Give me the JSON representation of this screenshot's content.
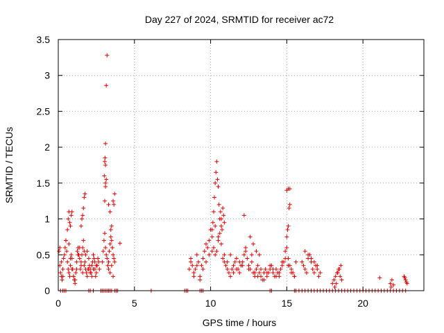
{
  "chart_data": {
    "type": "scatter",
    "title": "Day 227 of 2024, SRMTID for receiver ac72",
    "xlabel": "GPS time / hours",
    "ylabel": "SRMTID / TECUs",
    "xlim": [
      0,
      24
    ],
    "ylim": [
      0,
      3.5
    ],
    "xticks": [
      0,
      5,
      10,
      15,
      20
    ],
    "xtick_labels": [
      "0",
      "5",
      "10",
      "15",
      "20"
    ],
    "yticks": [
      0,
      0.5,
      1,
      1.5,
      2,
      2.5,
      3,
      3.5
    ],
    "ytick_labels": [
      "0",
      "0.5",
      "1",
      "1.5",
      "2",
      "2.5",
      "3",
      "3.5"
    ],
    "grid": true,
    "marker": "+",
    "color": "#e00000",
    "series": [
      {
        "x": [
          0.05,
          0.1,
          0.15,
          0.2,
          0.25,
          0.3,
          0.35,
          0.4,
          0.45,
          0.5,
          0.55,
          0.6,
          0.65,
          0.7,
          0.75,
          0.8,
          0.85,
          0.9,
          0.95,
          1.0,
          1.05,
          1.1,
          1.15,
          1.2,
          1.25,
          1.3,
          1.35,
          1.4,
          1.45,
          1.5,
          1.55,
          1.6,
          1.65,
          1.7,
          1.75,
          1.8,
          1.85,
          1.9,
          1.95,
          2.0,
          2.05,
          2.1,
          2.15,
          2.2,
          2.25,
          2.3,
          2.35,
          2.4,
          2.45,
          2.5,
          2.55,
          2.6,
          2.65,
          2.7,
          0.1,
          0.2,
          0.3,
          0.5,
          0.6,
          0.7,
          0.8,
          0.9,
          1.0,
          1.1,
          1.2,
          1.3,
          1.4,
          1.5,
          1.6,
          1.7,
          1.8,
          1.9,
          2.0,
          2.1,
          2.2,
          2.3,
          2.4,
          2.5,
          0.65,
          0.7,
          0.75,
          0.8,
          0.85,
          0.9,
          1.5,
          1.55,
          1.6,
          1.65,
          1.7,
          1.75,
          2.9,
          2.95,
          3.0,
          3.05,
          3.1,
          3.15,
          3.2,
          3.25,
          3.3,
          3.35,
          3.4,
          3.45,
          3.5,
          3.55,
          3.6,
          3.65,
          3.7,
          3.05,
          3.1,
          3.15,
          3.1,
          3.05,
          3.1,
          3.15,
          3.2,
          3.3,
          3.4,
          3.45,
          3.5,
          3.55,
          3.6,
          3.65,
          3.7,
          3.3,
          3.4,
          3.5,
          3.6,
          4.05,
          3.07,
          3.02,
          3.1
        ],
        "y": [
          0.55,
          0.35,
          0.25,
          0.2,
          0.15,
          0.3,
          0.45,
          0.5,
          0.6,
          0.7,
          0.55,
          0.4,
          0.3,
          0.25,
          0.2,
          0.35,
          0.5,
          0.45,
          0.3,
          0.2,
          0.15,
          0.1,
          0.25,
          0.4,
          0.55,
          0.6,
          0.5,
          0.45,
          0.3,
          0.35,
          0.5,
          0.6,
          0.7,
          0.55,
          0.4,
          0.3,
          0.25,
          0.2,
          0.3,
          0.45,
          0.35,
          0.3,
          0.25,
          0.35,
          0.4,
          0.5,
          0.45,
          0.3,
          0.2,
          0.25,
          0.35,
          0.45,
          0.4,
          0.3,
          0.6,
          0.4,
          0.2,
          0.7,
          0.85,
          0.65,
          0.45,
          0.3,
          0.2,
          0.15,
          0.3,
          0.5,
          0.6,
          0.4,
          0.25,
          0.35,
          0.5,
          0.55,
          0.3,
          0.25,
          0.2,
          0.3,
          0.4,
          0.35,
          1.0,
          1.1,
          0.95,
          0.9,
          1.05,
          1.1,
          0.9,
          1.0,
          1.05,
          1.15,
          1.3,
          1.35,
          0.4,
          0.55,
          0.7,
          0.8,
          0.6,
          0.5,
          0.45,
          0.35,
          0.4,
          0.55,
          0.65,
          0.75,
          0.9,
          0.6,
          0.5,
          0.45,
          0.4,
          1.25,
          1.45,
          1.55,
          1.75,
          1.8,
          2.05,
          2.86,
          3.28,
          1.2,
          1.1,
          0.85,
          0.7,
          0.6,
          1.25,
          1.2,
          1.35,
          0.3,
          0.25,
          0.35,
          0.2,
          0.66,
          1.85,
          1.6,
          1.5
        ]
      },
      {
        "x": [
          8.6,
          8.7,
          8.8,
          8.9,
          9.0,
          9.1,
          9.2,
          9.3,
          9.4,
          9.5,
          9.6,
          9.7,
          9.8,
          9.9,
          10.0,
          10.1,
          10.2,
          10.3,
          10.4,
          10.5,
          10.6,
          10.7,
          10.8,
          10.9,
          11.0,
          11.1,
          11.2,
          11.3,
          11.4,
          11.5,
          11.6,
          11.7,
          11.8,
          11.9,
          12.0,
          12.1,
          12.2,
          12.3,
          12.4,
          12.5,
          12.6,
          12.7,
          12.8,
          12.9,
          13.0,
          13.1,
          13.2,
          13.3,
          13.4,
          13.5,
          13.6,
          13.7,
          13.8,
          13.9,
          14.0,
          14.1,
          14.2,
          14.3,
          14.4,
          14.5,
          14.6,
          14.7,
          14.8,
          14.9,
          15.0,
          15.1,
          15.2,
          15.3,
          15.4,
          15.5,
          15.6,
          8.7,
          8.9,
          9.1,
          9.3,
          9.5,
          9.7,
          9.9,
          10.1,
          10.3,
          10.5,
          10.7,
          10.9,
          11.1,
          11.3,
          11.5,
          11.7,
          11.9,
          12.1,
          12.3,
          12.5,
          12.7,
          12.9,
          13.1,
          13.3,
          13.5,
          13.7,
          13.9,
          14.1,
          14.3,
          14.5,
          14.7,
          14.9,
          15.1,
          15.3,
          15.5,
          10.1,
          10.15,
          10.2,
          10.25,
          10.3,
          10.35,
          10.4,
          10.45,
          10.5,
          10.55,
          10.6,
          10.65,
          10.7,
          10.75,
          10.8,
          10.85,
          10.9,
          12.2,
          12.6,
          12.8,
          13.0,
          13.2,
          15.0,
          15.05,
          15.1,
          15.15,
          15.2,
          15.0,
          15.1,
          15.2
        ],
        "y": [
          0.3,
          0.4,
          0.35,
          0.25,
          0.3,
          0.5,
          0.4,
          0.2,
          0.35,
          0.45,
          0.55,
          0.4,
          0.6,
          0.7,
          0.85,
          0.75,
          0.6,
          0.5,
          0.55,
          0.7,
          0.8,
          0.65,
          0.45,
          0.4,
          0.35,
          0.3,
          0.25,
          0.2,
          0.3,
          0.35,
          0.4,
          0.45,
          0.3,
          0.25,
          0.35,
          0.4,
          0.5,
          0.55,
          0.45,
          0.35,
          0.3,
          0.4,
          0.25,
          0.2,
          0.3,
          0.35,
          0.25,
          0.2,
          0.15,
          0.25,
          0.3,
          0.2,
          0.25,
          0.3,
          0.35,
          0.25,
          0.2,
          0.3,
          0.25,
          0.2,
          0.3,
          0.35,
          0.4,
          0.55,
          0.6,
          0.45,
          0.35,
          0.3,
          0.25,
          0.2,
          0.4,
          0.45,
          0.2,
          0.35,
          0.15,
          0.3,
          0.65,
          0.5,
          0.55,
          0.9,
          0.75,
          1.0,
          0.5,
          0.4,
          0.5,
          0.25,
          0.3,
          0.4,
          0.35,
          0.6,
          0.3,
          0.5,
          0.25,
          0.2,
          0.3,
          0.15,
          0.25,
          0.35,
          0.3,
          0.2,
          0.25,
          0.4,
          0.45,
          0.35,
          0.25,
          0.2,
          0.85,
          0.95,
          1.1,
          1.3,
          1.5,
          1.65,
          1.8,
          1.55,
          1.45,
          1.2,
          1.0,
          1.1,
          0.9,
          0.85,
          1.15,
          1.05,
          0.95,
          1.05,
          0.75,
          0.65,
          0.55,
          0.5,
          0.75,
          0.85,
          0.9,
          1.15,
          1.2,
          1.4,
          1.42,
          1.42
        ]
      },
      {
        "x": [
          16.0,
          16.1,
          16.2,
          16.3,
          16.4,
          16.5,
          16.6,
          16.7,
          16.8,
          16.9,
          17.0,
          17.1,
          17.2,
          16.2,
          16.4,
          16.6,
          16.8,
          17.0,
          18.0,
          18.1,
          18.2,
          18.3,
          18.4,
          18.5,
          18.6,
          18.15,
          18.25,
          18.35,
          18.45,
          18.55,
          21.1,
          21.8,
          21.9,
          22.0,
          21.85,
          22.7,
          22.8,
          22.9,
          22.75,
          22.85
        ],
        "y": [
          0.4,
          0.35,
          0.3,
          0.25,
          0.45,
          0.5,
          0.4,
          0.3,
          0.25,
          0.35,
          0.3,
          0.2,
          0.25,
          0.55,
          0.5,
          0.45,
          0.4,
          0.35,
          0.1,
          0.15,
          0.2,
          0.25,
          0.3,
          0.2,
          0.15,
          0.05,
          0.1,
          0.25,
          0.3,
          0.35,
          0.18,
          0.1,
          0.15,
          0.08,
          0.05,
          0.2,
          0.15,
          0.1,
          0.18,
          0.12
        ]
      },
      {
        "x": [
          0.15,
          0.3,
          0.4,
          0.5,
          2.0,
          2.1,
          2.3,
          2.8,
          2.9,
          3.0,
          3.1,
          3.2,
          3.3,
          3.4,
          3.5,
          3.7,
          3.8,
          3.9,
          6.1,
          8.3,
          8.4,
          8.5,
          9.3,
          9.4,
          9.5,
          13.9,
          14.0,
          15.5,
          15.6,
          15.8,
          16.0,
          16.2,
          16.4,
          16.6,
          16.8,
          17.0,
          17.2,
          17.4,
          17.6,
          17.8,
          18.0,
          18.2,
          18.4,
          18.6,
          18.8,
          19.0,
          19.2,
          19.4,
          19.6,
          19.8,
          20.0,
          20.2,
          20.4,
          20.6,
          20.8,
          21.0,
          21.2,
          21.4,
          21.6,
          21.8,
          22.0,
          22.2,
          22.4,
          22.6,
          22.8
        ],
        "y": [
          0,
          0,
          0,
          0,
          0,
          0,
          0,
          0,
          0,
          0,
          0,
          0,
          0,
          0,
          0,
          0,
          0,
          0,
          0,
          0,
          0,
          0,
          0,
          0,
          0,
          0,
          0,
          0,
          0,
          0,
          0,
          0,
          0,
          0,
          0,
          0,
          0,
          0,
          0,
          0,
          0,
          0,
          0,
          0,
          0,
          0,
          0,
          0,
          0,
          0,
          0,
          0,
          0,
          0,
          0,
          0,
          0,
          0,
          0,
          0,
          0,
          0,
          0,
          0,
          0
        ]
      }
    ]
  }
}
